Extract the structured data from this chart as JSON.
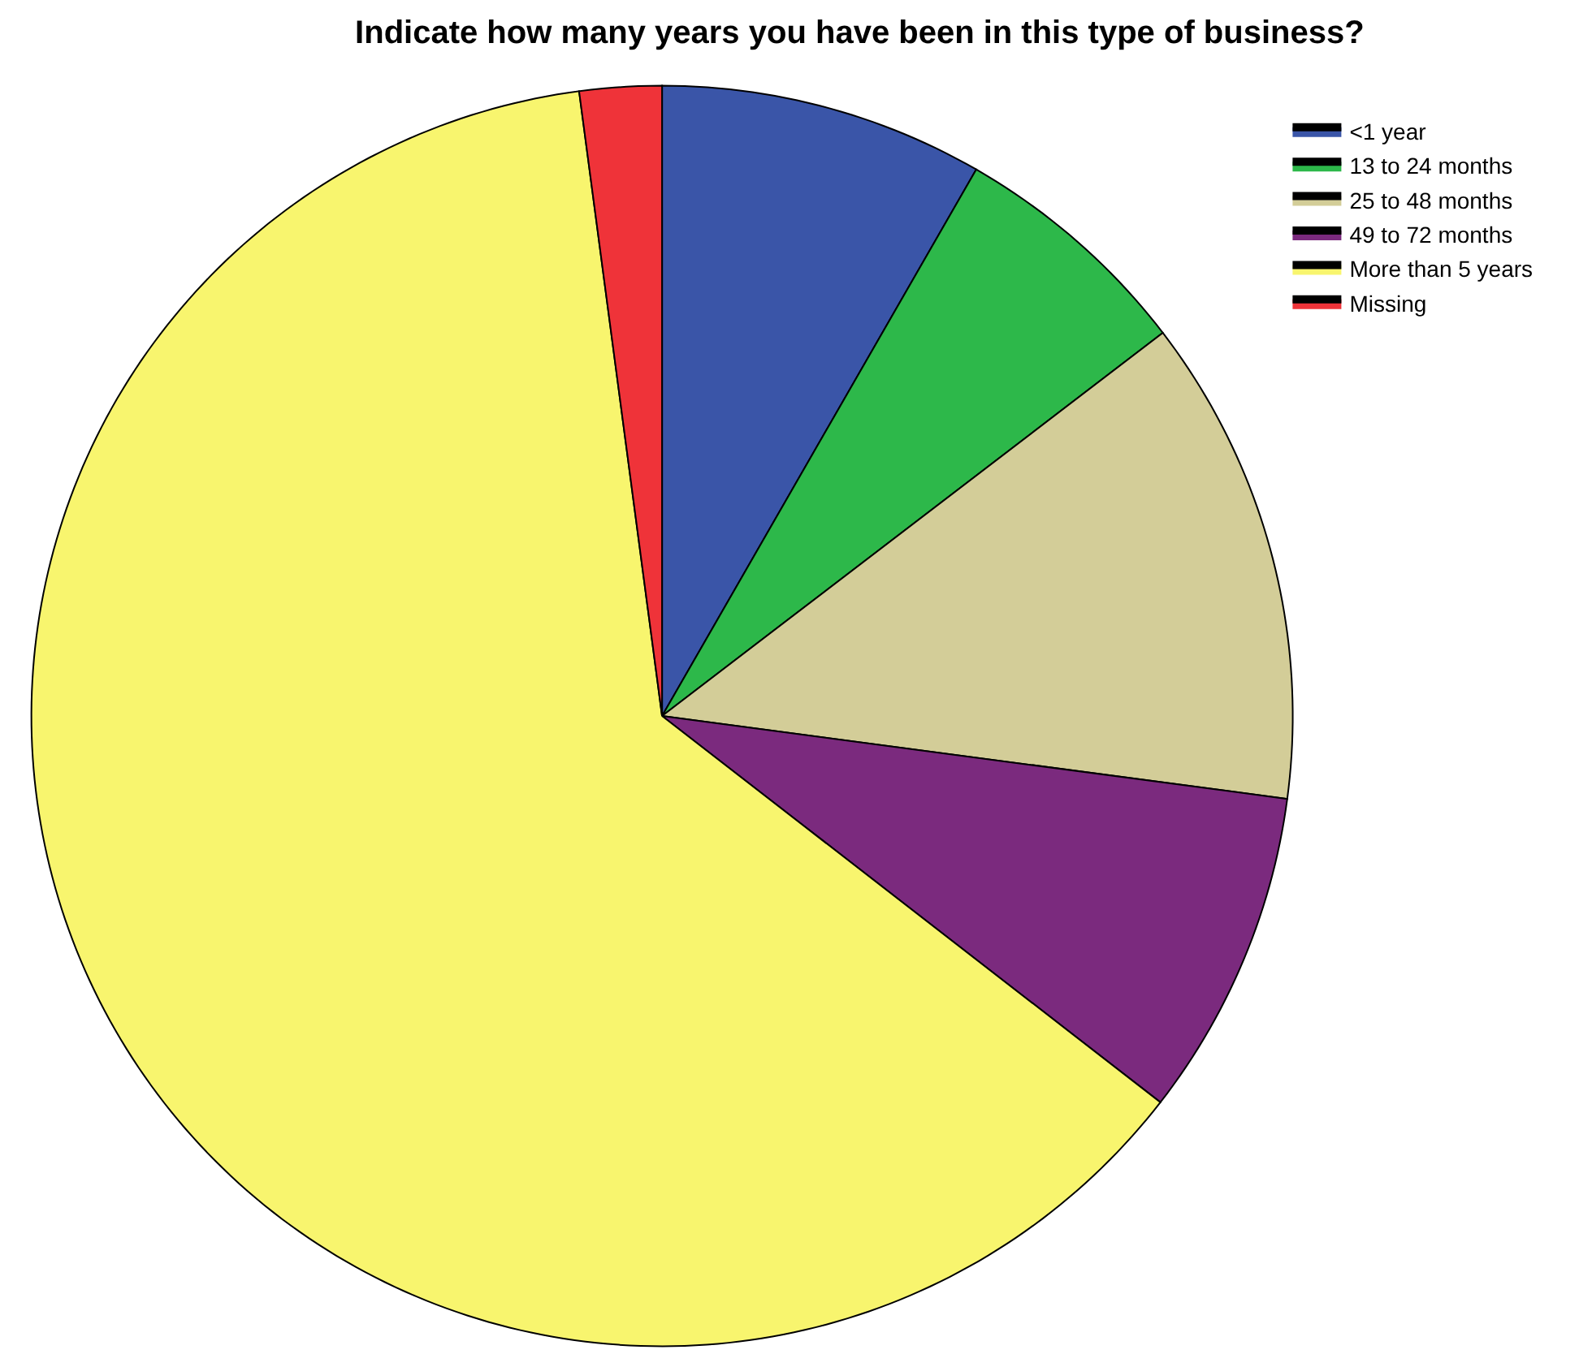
{
  "chart_data": {
    "type": "pie",
    "title": "Indicate how many years you have been in this type of business?",
    "categories": [
      "<1 year",
      "13 to 24 months",
      "25 to 48 months",
      "49 to 72 months",
      "More than 5 years",
      "Missing"
    ],
    "values": [
      8.3,
      6.3,
      12.5,
      8.4,
      62.4,
      2.1
    ],
    "colors": [
      "#3a55a8",
      "#2db84a",
      "#d3cd98",
      "#7b2a7e",
      "#f8f56e",
      "#ef3339"
    ],
    "legend": "top right"
  }
}
